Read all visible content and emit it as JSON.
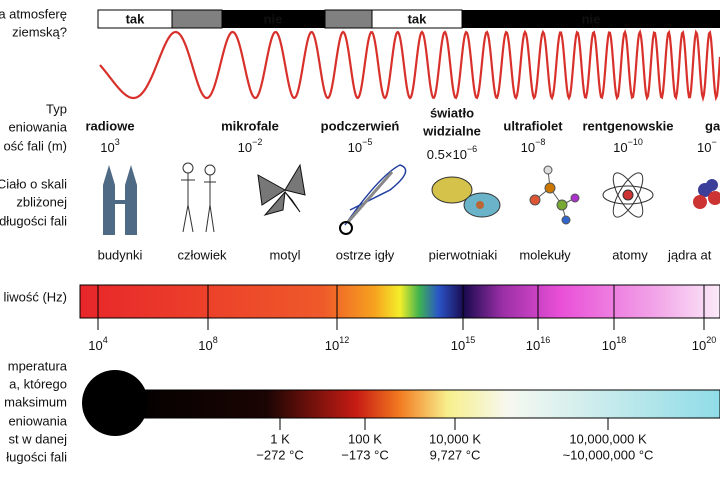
{
  "left_labels": {
    "atmosphere": [
      "a atmosferę",
      "ziemską?"
    ],
    "type": [
      "Typ",
      "eniowania",
      "ość fali (m)"
    ],
    "scale": [
      "Ciało o skali",
      "zbliżonej",
      "długości fali"
    ],
    "frequency": [
      "liwość (Hz)"
    ],
    "temperature": [
      "mperatura",
      "a, którego",
      "maksimum",
      "eniowania",
      "st w danej",
      "ługości fali"
    ]
  },
  "atmosphere_bar": [
    "tak",
    "nie",
    "tak",
    "nie"
  ],
  "types": [
    {
      "name": [
        "radiowe"
      ],
      "wavelength": {
        "base": "10",
        "exp": "3"
      }
    },
    {
      "name": [
        "mikrofale"
      ],
      "wavelength": {
        "base": "10",
        "exp": "−2"
      }
    },
    {
      "name": [
        "podczerwień"
      ],
      "wavelength": {
        "base": "10",
        "exp": "−5"
      }
    },
    {
      "name": [
        "światło",
        "widzialne"
      ],
      "wavelength": {
        "base": "0.5×10",
        "exp": "−6"
      }
    },
    {
      "name": [
        "ultrafiolet"
      ],
      "wavelength": {
        "base": "10",
        "exp": "−8"
      }
    },
    {
      "name": [
        "rentgenowskie"
      ],
      "wavelength": {
        "base": "10",
        "exp": "−10"
      }
    },
    {
      "name": [
        "gam"
      ],
      "wavelength": {
        "base": "10",
        "exp": "−"
      }
    }
  ],
  "objects": [
    "budynki",
    "człowiek",
    "motyl",
    "ostrze igły",
    "pierwotniaki",
    "molekuły",
    "atomy",
    "jądra at"
  ],
  "frequency_ticks": [
    {
      "base": "10",
      "exp": "4"
    },
    {
      "base": "10",
      "exp": "8"
    },
    {
      "base": "10",
      "exp": "12"
    },
    {
      "base": "10",
      "exp": "15"
    },
    {
      "base": "10",
      "exp": "16"
    },
    {
      "base": "10",
      "exp": "18"
    },
    {
      "base": "10",
      "exp": "20"
    }
  ],
  "temperature_ticks": [
    {
      "kelvin": "1 K",
      "celsius": "−272 °C"
    },
    {
      "kelvin": "100 K",
      "celsius": "−173 °C"
    },
    {
      "kelvin": "10,000 K",
      "celsius": "9,727 °C"
    },
    {
      "kelvin": "10,000,000 K",
      "celsius": "~10,000,000 °C"
    }
  ]
}
